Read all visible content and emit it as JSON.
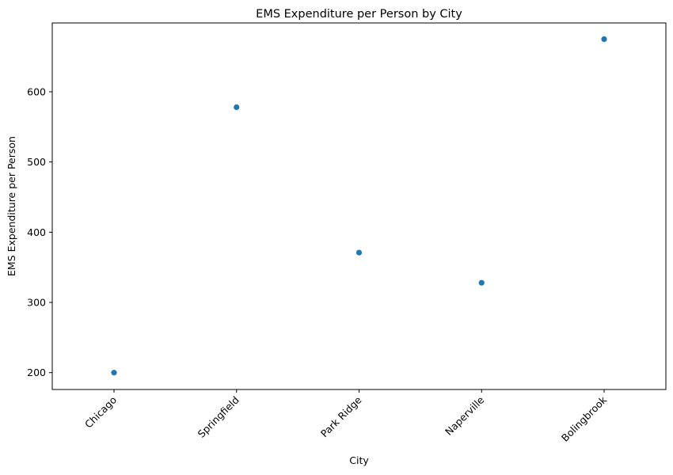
{
  "chart_data": {
    "type": "scatter",
    "title": "EMS Expenditure per Person by City",
    "xlabel": "City",
    "ylabel": "EMS Expenditure per Person",
    "categories": [
      "Chicago",
      "Springfield",
      "Park Ridge",
      "Naperville",
      "Bolingbrook"
    ],
    "series": [
      {
        "values": [
          200,
          578,
          371,
          328,
          675
        ]
      }
    ],
    "ylim": [
      176,
      698
    ],
    "yticks": [
      200,
      300,
      400,
      500,
      600
    ],
    "grid": false,
    "legend": false,
    "point_color": "#1f77b4"
  }
}
